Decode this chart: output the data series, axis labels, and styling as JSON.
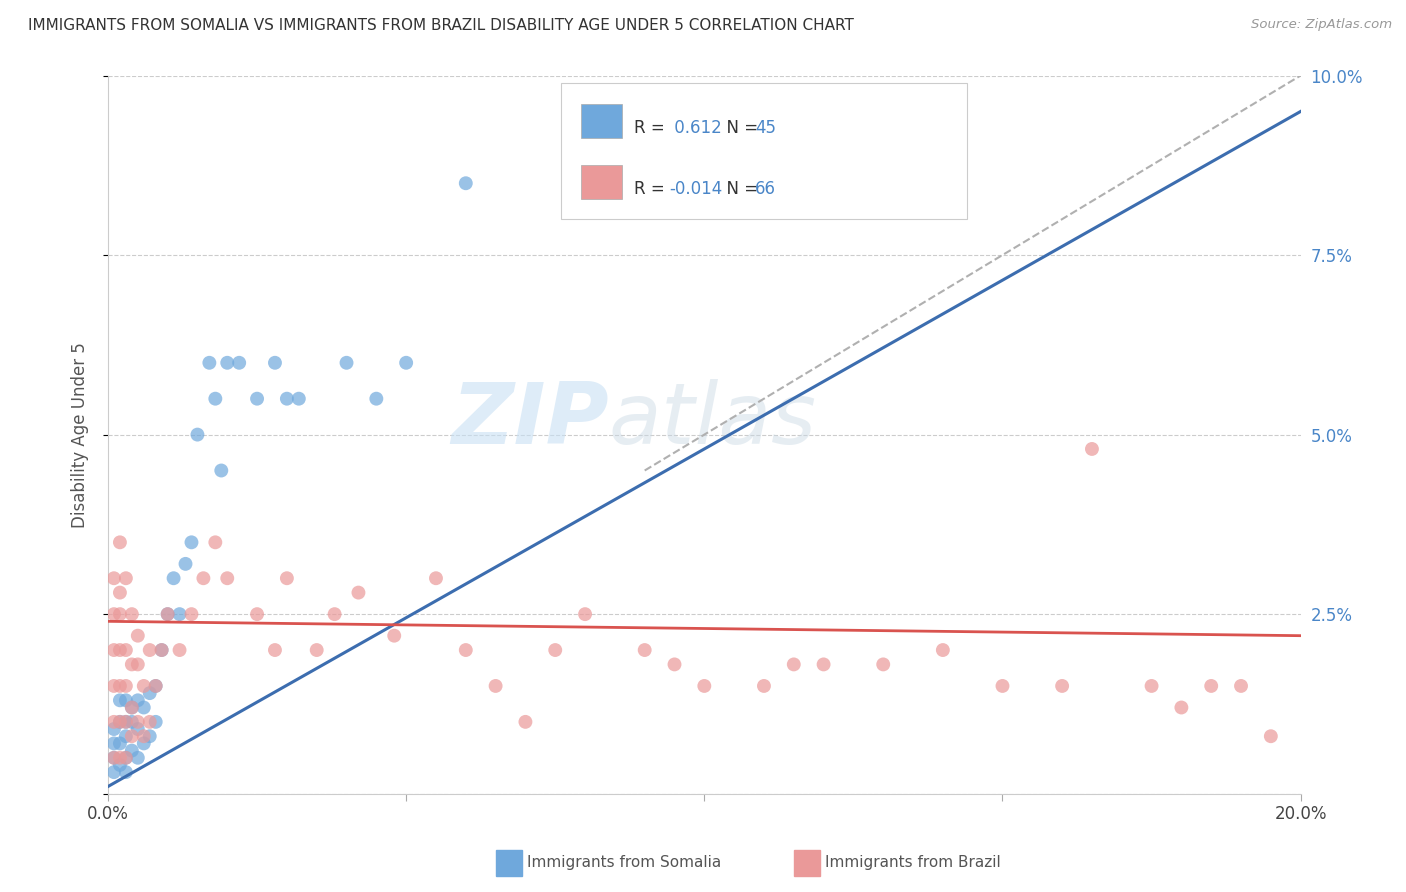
{
  "title": "IMMIGRANTS FROM SOMALIA VS IMMIGRANTS FROM BRAZIL DISABILITY AGE UNDER 5 CORRELATION CHART",
  "source": "Source: ZipAtlas.com",
  "ylabel": "Disability Age Under 5",
  "xlabel_somalia": "Immigrants from Somalia",
  "xlabel_brazil": "Immigrants from Brazil",
  "xlim": [
    0.0,
    0.2
  ],
  "ylim": [
    0.0,
    0.1
  ],
  "xticks": [
    0.0,
    0.05,
    0.1,
    0.15,
    0.2
  ],
  "xtick_labels": [
    "0.0%",
    "",
    "",
    "",
    "20.0%"
  ],
  "yticks": [
    0.0,
    0.025,
    0.05,
    0.075,
    0.1
  ],
  "ytick_labels_right": [
    "",
    "2.5%",
    "5.0%",
    "7.5%",
    "10.0%"
  ],
  "somalia_color": "#6fa8dc",
  "brazil_color": "#ea9999",
  "somalia_line_color": "#3c6daf",
  "brazil_line_color": "#d9534f",
  "dashed_line_color": "#b0b0b0",
  "r_somalia": 0.612,
  "n_somalia": 45,
  "r_brazil": -0.014,
  "n_brazil": 66,
  "background_color": "#ffffff",
  "grid_color": "#cccccc",
  "watermark_zip": "ZIP",
  "watermark_atlas": "atlas",
  "somalia_scatter_x": [
    0.001,
    0.001,
    0.001,
    0.001,
    0.002,
    0.002,
    0.002,
    0.002,
    0.003,
    0.003,
    0.003,
    0.003,
    0.003,
    0.004,
    0.004,
    0.004,
    0.005,
    0.005,
    0.005,
    0.006,
    0.006,
    0.007,
    0.007,
    0.008,
    0.008,
    0.009,
    0.01,
    0.011,
    0.012,
    0.013,
    0.014,
    0.015,
    0.017,
    0.018,
    0.019,
    0.02,
    0.022,
    0.025,
    0.028,
    0.03,
    0.032,
    0.04,
    0.045,
    0.05,
    0.06
  ],
  "somalia_scatter_y": [
    0.003,
    0.005,
    0.007,
    0.009,
    0.004,
    0.007,
    0.01,
    0.013,
    0.003,
    0.005,
    0.008,
    0.01,
    0.013,
    0.006,
    0.01,
    0.012,
    0.005,
    0.009,
    0.013,
    0.007,
    0.012,
    0.008,
    0.014,
    0.01,
    0.015,
    0.02,
    0.025,
    0.03,
    0.025,
    0.032,
    0.035,
    0.05,
    0.06,
    0.055,
    0.045,
    0.06,
    0.06,
    0.055,
    0.06,
    0.055,
    0.055,
    0.06,
    0.055,
    0.06,
    0.085
  ],
  "brazil_scatter_x": [
    0.001,
    0.001,
    0.001,
    0.001,
    0.001,
    0.001,
    0.002,
    0.002,
    0.002,
    0.002,
    0.002,
    0.002,
    0.002,
    0.003,
    0.003,
    0.003,
    0.003,
    0.003,
    0.004,
    0.004,
    0.004,
    0.004,
    0.005,
    0.005,
    0.005,
    0.006,
    0.006,
    0.007,
    0.007,
    0.008,
    0.009,
    0.01,
    0.012,
    0.014,
    0.016,
    0.018,
    0.02,
    0.025,
    0.028,
    0.03,
    0.035,
    0.038,
    0.042,
    0.048,
    0.055,
    0.06,
    0.065,
    0.07,
    0.075,
    0.08,
    0.09,
    0.095,
    0.1,
    0.11,
    0.115,
    0.12,
    0.13,
    0.14,
    0.15,
    0.16,
    0.165,
    0.175,
    0.18,
    0.185,
    0.19,
    0.195
  ],
  "brazil_scatter_y": [
    0.005,
    0.01,
    0.015,
    0.02,
    0.025,
    0.03,
    0.005,
    0.01,
    0.015,
    0.02,
    0.025,
    0.028,
    0.035,
    0.005,
    0.01,
    0.015,
    0.02,
    0.03,
    0.008,
    0.012,
    0.018,
    0.025,
    0.01,
    0.018,
    0.022,
    0.008,
    0.015,
    0.01,
    0.02,
    0.015,
    0.02,
    0.025,
    0.02,
    0.025,
    0.03,
    0.035,
    0.03,
    0.025,
    0.02,
    0.03,
    0.02,
    0.025,
    0.028,
    0.022,
    0.03,
    0.02,
    0.015,
    0.01,
    0.02,
    0.025,
    0.02,
    0.018,
    0.015,
    0.015,
    0.018,
    0.018,
    0.018,
    0.02,
    0.015,
    0.015,
    0.048,
    0.015,
    0.012,
    0.015,
    0.015,
    0.008
  ],
  "somalia_line_x": [
    0.0,
    0.2
  ],
  "somalia_line_y": [
    0.001,
    0.095
  ],
  "brazil_line_x": [
    0.0,
    0.2
  ],
  "brazil_line_y": [
    0.024,
    0.022
  ],
  "dashed_line_x": [
    0.09,
    0.2
  ],
  "dashed_line_y": [
    0.045,
    0.1
  ]
}
